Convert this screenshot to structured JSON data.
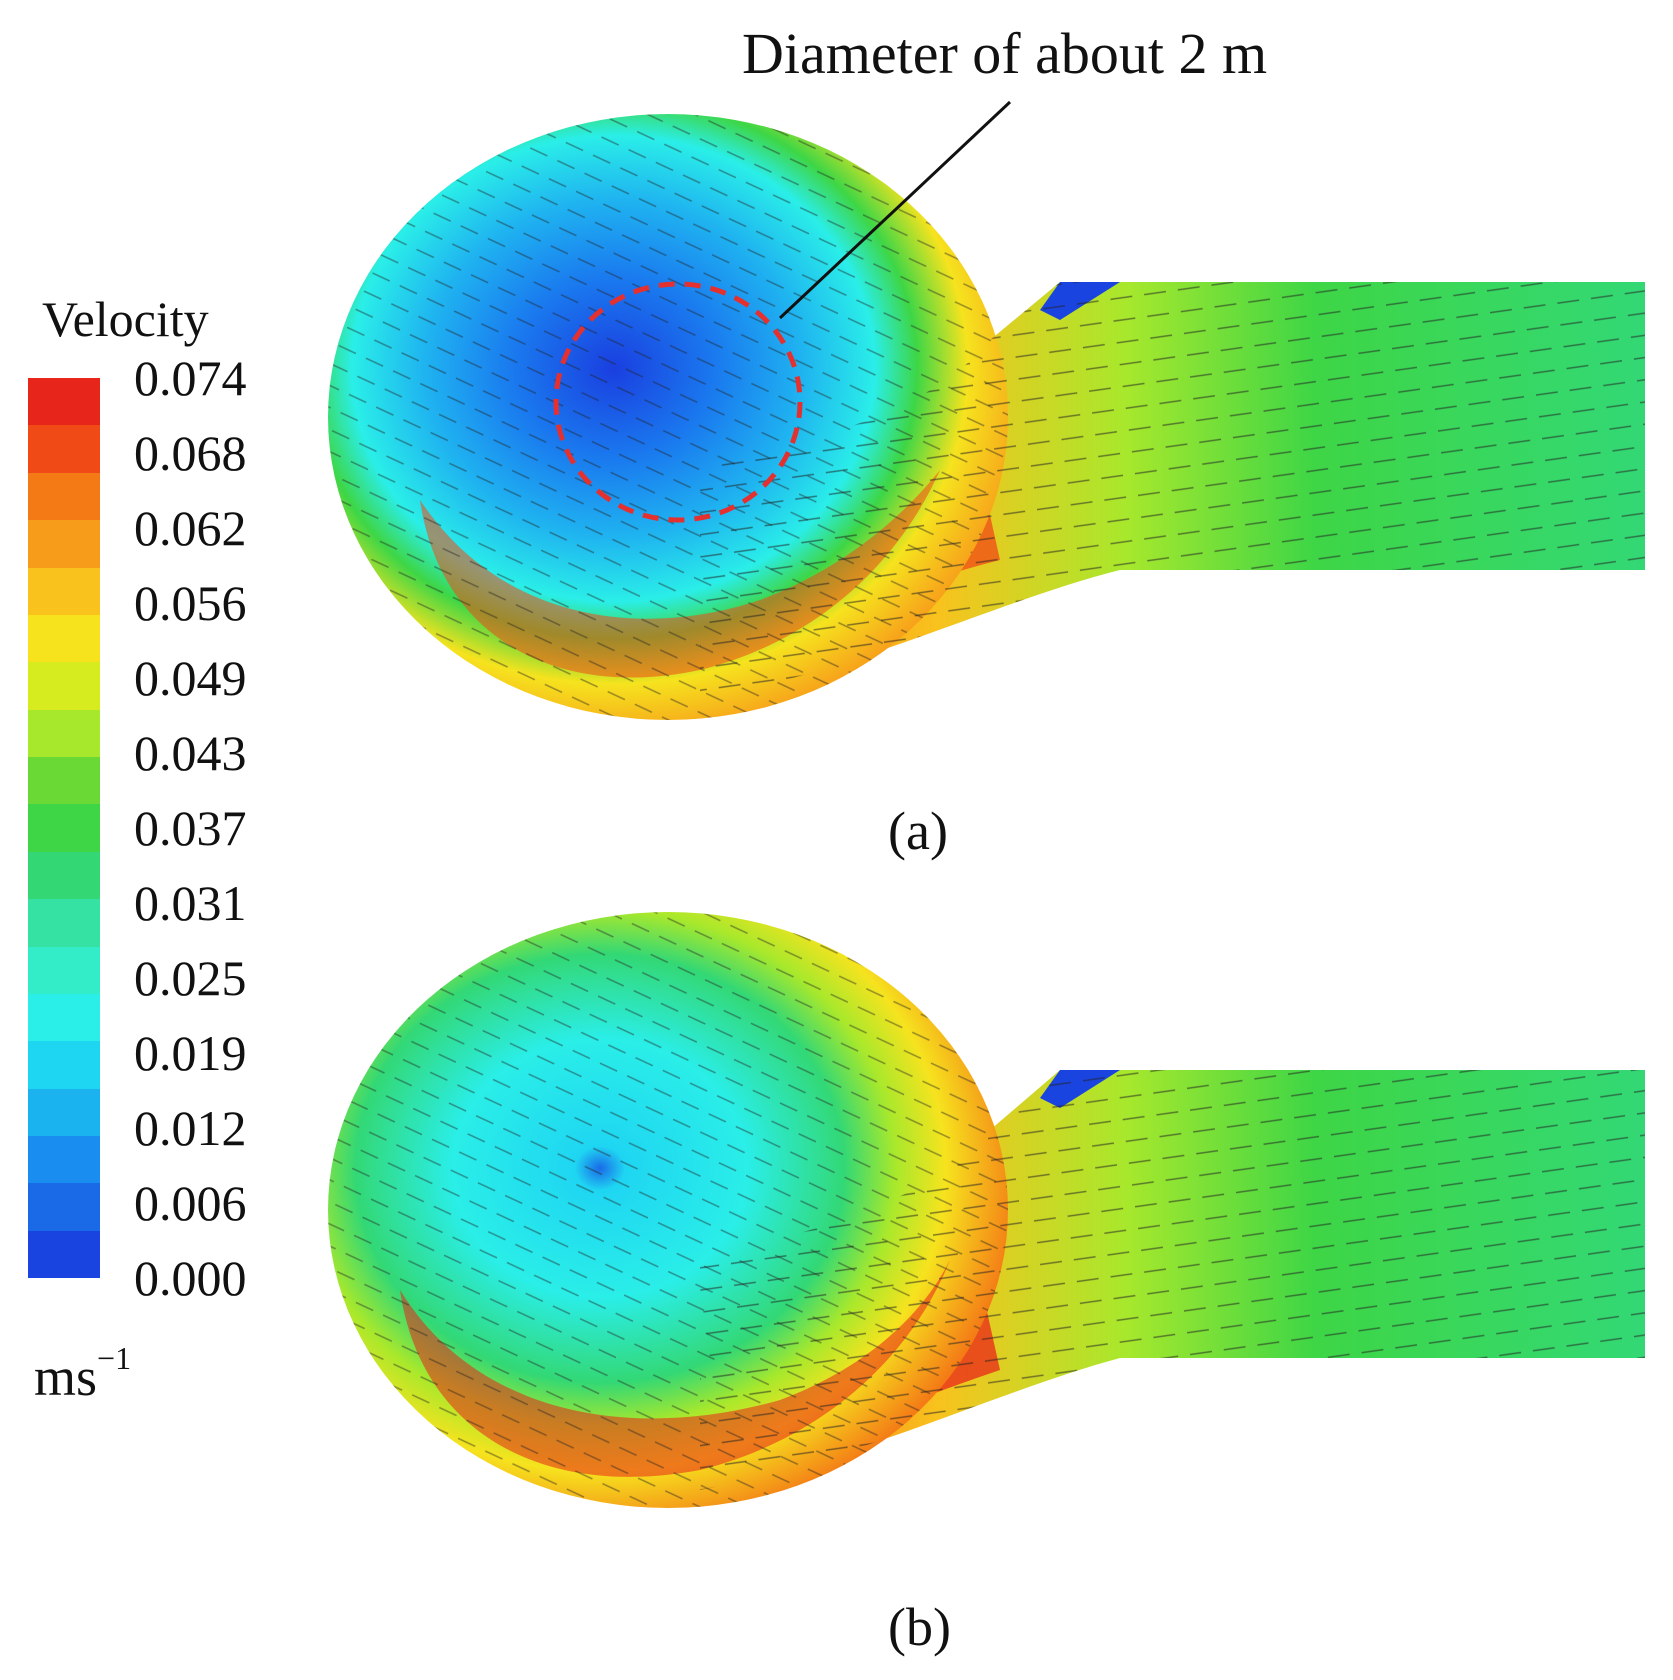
{
  "annotation": "Diameter of about 2 m",
  "legend": {
    "title": "Velocity",
    "unit_base": "ms",
    "unit_exponent": "−1",
    "ticks": [
      "0.074",
      "0.068",
      "0.062",
      "0.056",
      "0.049",
      "0.043",
      "0.037",
      "0.031",
      "0.025",
      "0.019",
      "0.012",
      "0.006",
      "0.000"
    ],
    "colors": [
      "#e8251a",
      "#f04a16",
      "#f47a16",
      "#f79c1a",
      "#f9c21d",
      "#f6e31e",
      "#d7ec1e",
      "#a8e82c",
      "#6bd935",
      "#3ed646",
      "#33d875",
      "#35e2a3",
      "#33edc8",
      "#2aeee8",
      "#1fd6f2",
      "#1bb2f0",
      "#1a8ef0",
      "#1a6ae8",
      "#1a44e0"
    ]
  },
  "panels": [
    {
      "label": "(a)"
    },
    {
      "label": "(b)"
    }
  ]
}
